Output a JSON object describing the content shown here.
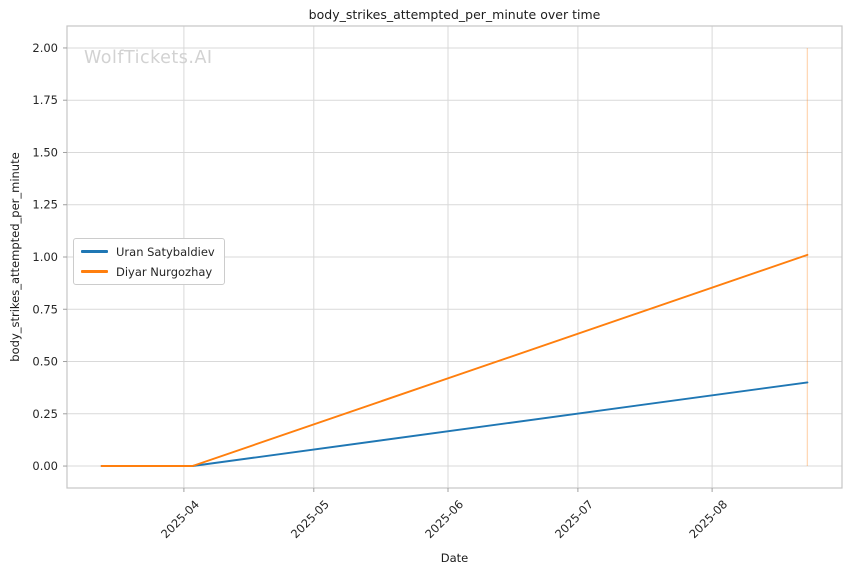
{
  "chart_data": {
    "type": "line",
    "title": "body_strikes_attempted_per_minute over time",
    "xlabel": "Date",
    "ylabel": "body_strikes_attempted_per_minute",
    "watermark": "WolfTickets.AI",
    "legend_position": "center left",
    "grid": true,
    "xlim": [
      "2025-03-05",
      "2025-08-31"
    ],
    "ylim": [
      -0.105,
      2.105
    ],
    "x_ticks": [
      {
        "date": "2025-04-01",
        "label": "2025-04"
      },
      {
        "date": "2025-05-01",
        "label": "2025-05"
      },
      {
        "date": "2025-06-01",
        "label": "2025-06"
      },
      {
        "date": "2025-07-01",
        "label": "2025-07"
      },
      {
        "date": "2025-08-01",
        "label": "2025-08"
      }
    ],
    "y_ticks": [
      0.0,
      0.25,
      0.5,
      0.75,
      1.0,
      1.25,
      1.5,
      1.75,
      2.0
    ],
    "series": [
      {
        "name": "Uran Satybaldiev",
        "color": "#1f77b4",
        "points": [
          [
            "2025-03-13",
            0.0
          ],
          [
            "2025-04-03",
            0.0
          ],
          [
            "2025-08-23",
            0.4
          ]
        ]
      },
      {
        "name": "Diyar Nurgozhay",
        "color": "#ff7f0e",
        "points": [
          [
            "2025-03-13",
            0.0
          ],
          [
            "2025-04-03",
            0.0
          ],
          [
            "2025-08-23",
            1.01
          ]
        ]
      }
    ],
    "marker_vline": {
      "date": "2025-08-23",
      "color": "#ff7f0e",
      "opacity": 0.3,
      "y_from": 0.0,
      "y_to": 2.0
    },
    "colors": {
      "grid": "#d9d9d9",
      "spine": "#c6c6c6",
      "tick": "#a0a0a0",
      "text": "#262626"
    }
  }
}
